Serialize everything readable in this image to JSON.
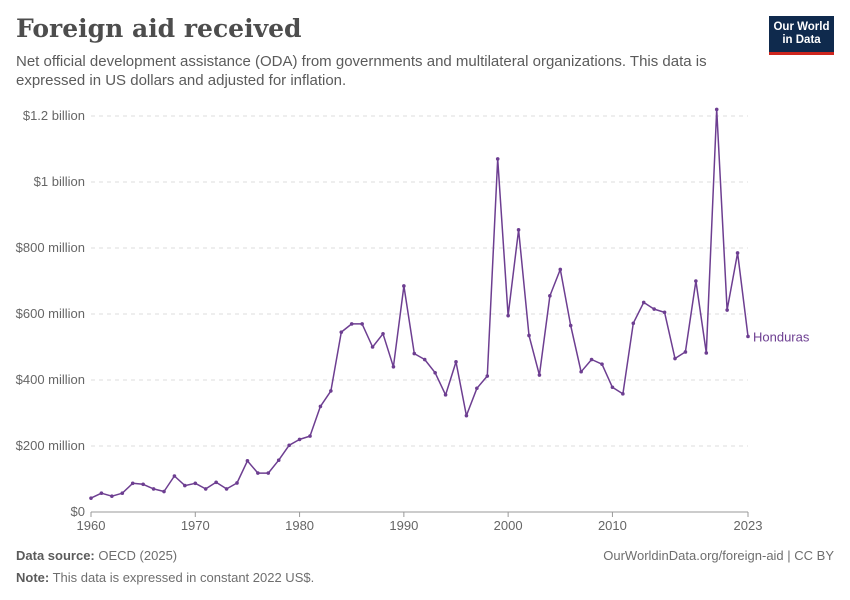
{
  "header": {
    "title": "Foreign aid received",
    "subtitle": "Net official development assistance (ODA) from governments and multilateral organizations. This data is expressed in US dollars and adjusted for inflation."
  },
  "logo": {
    "line1": "Our World",
    "line2": "in Data",
    "bg": "#0f2a4d",
    "accent": "#ce261e"
  },
  "footer": {
    "source_label": "Data source:",
    "source_text": "OECD (2025)",
    "note_label": "Note:",
    "note_text": "This data is expressed in constant 2022 US$.",
    "link": "OurWorldinData.org/foreign-aid | CC BY"
  },
  "chart_data": {
    "type": "line",
    "title": "Foreign aid received",
    "xlim": [
      1960,
      2023
    ],
    "ylim": [
      0,
      1200000000
    ],
    "x_ticks": [
      {
        "value": 1960,
        "label": "1960"
      },
      {
        "value": 1970,
        "label": "1970"
      },
      {
        "value": 1980,
        "label": "1980"
      },
      {
        "value": 1990,
        "label": "1990"
      },
      {
        "value": 2000,
        "label": "2000"
      },
      {
        "value": 2010,
        "label": "2010"
      },
      {
        "value": 2023,
        "label": "2023"
      }
    ],
    "y_ticks": [
      {
        "value": 0,
        "label": "$0"
      },
      {
        "value": 200000000,
        "label": "$200 million"
      },
      {
        "value": 400000000,
        "label": "$400 million"
      },
      {
        "value": 600000000,
        "label": "$600 million"
      },
      {
        "value": 800000000,
        "label": "$800 million"
      },
      {
        "value": 1000000000,
        "label": "$1 billion"
      },
      {
        "value": 1200000000,
        "label": "$1.2 billion"
      }
    ],
    "grid": "horizontal-dashed",
    "series": [
      {
        "name": "Honduras",
        "color": "#6d3e91",
        "x": [
          1960,
          1961,
          1962,
          1963,
          1964,
          1965,
          1966,
          1967,
          1968,
          1969,
          1970,
          1971,
          1972,
          1973,
          1974,
          1975,
          1976,
          1977,
          1978,
          1979,
          1980,
          1981,
          1982,
          1983,
          1984,
          1985,
          1986,
          1987,
          1988,
          1989,
          1990,
          1991,
          1992,
          1993,
          1994,
          1995,
          1996,
          1997,
          1998,
          1999,
          2000,
          2001,
          2002,
          2003,
          2004,
          2005,
          2006,
          2007,
          2008,
          2009,
          2010,
          2011,
          2012,
          2013,
          2014,
          2015,
          2016,
          2017,
          2018,
          2019,
          2020,
          2021,
          2022,
          2023
        ],
        "y": [
          42000000,
          57000000,
          48000000,
          57000000,
          87000000,
          84000000,
          70000000,
          62000000,
          109000000,
          80000000,
          87000000,
          70000000,
          90000000,
          70000000,
          88000000,
          155000000,
          118000000,
          118000000,
          157000000,
          202000000,
          220000000,
          230000000,
          320000000,
          367000000,
          545000000,
          570000000,
          570000000,
          500000000,
          540000000,
          440000000,
          685000000,
          480000000,
          462000000,
          422000000,
          355000000,
          455000000,
          292000000,
          375000000,
          412000000,
          1070000000,
          595000000,
          855000000,
          535000000,
          415000000,
          655000000,
          735000000,
          565000000,
          425000000,
          462000000,
          448000000,
          378000000,
          358000000,
          572000000,
          635000000,
          615000000,
          605000000,
          465000000,
          485000000,
          700000000,
          482000000,
          1220000000,
          612000000,
          785000000,
          532000000
        ]
      }
    ]
  }
}
